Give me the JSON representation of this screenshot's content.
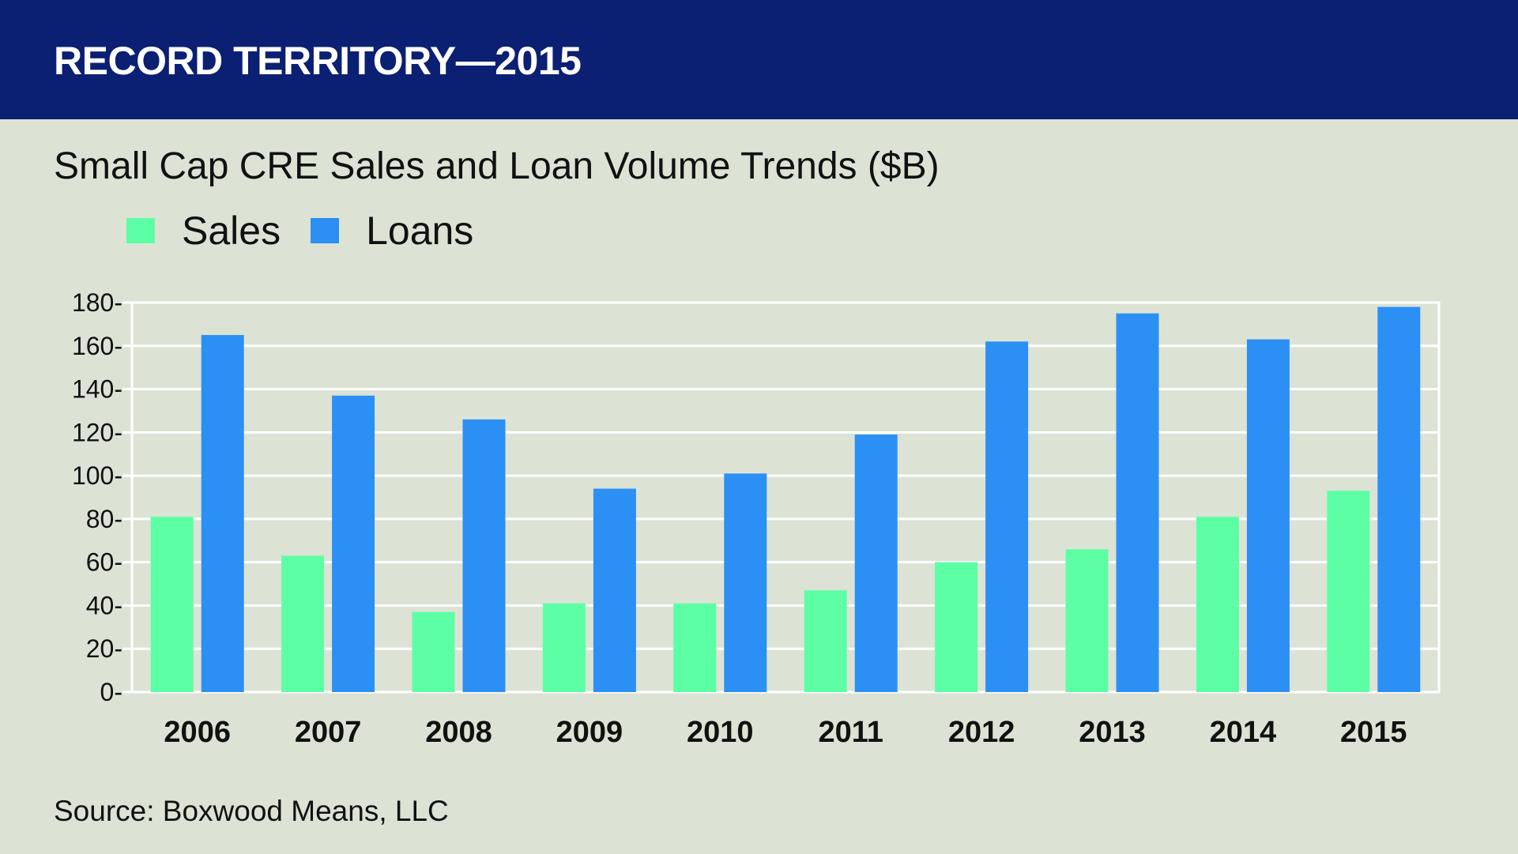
{
  "header": {
    "title": "RECORD TERRITORY—2015"
  },
  "subtitle": "Small Cap CRE Sales and Loan Volume Trends ($B)",
  "source": "Source: Boxwood Means, LLC",
  "colors": {
    "header_bg": "#0b1f73",
    "background": "#dce3d5",
    "sales": "#5cffa3",
    "loans": "#2b8ff3"
  },
  "chart_data": {
    "type": "bar",
    "categories": [
      "2006",
      "2007",
      "2008",
      "2009",
      "2010",
      "2011",
      "2012",
      "2013",
      "2014",
      "2015"
    ],
    "series": [
      {
        "name": "Sales",
        "color": "#5cffa3",
        "values": [
          81,
          63,
          37,
          41,
          41,
          47,
          60,
          66,
          81,
          93
        ]
      },
      {
        "name": "Loans",
        "color": "#2b8ff3",
        "values": [
          165,
          137,
          126,
          94,
          101,
          119,
          162,
          175,
          163,
          178
        ]
      }
    ],
    "ylim": [
      0,
      180
    ],
    "yticks": [
      0,
      20,
      40,
      60,
      80,
      100,
      120,
      140,
      160,
      180
    ],
    "grid": true,
    "legend_position": "top-left"
  }
}
